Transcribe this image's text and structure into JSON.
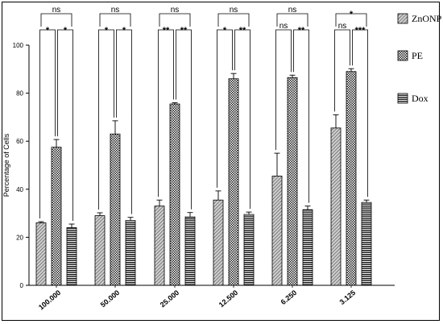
{
  "chart_data": {
    "type": "bar",
    "ylabel": "Percentage of Cells",
    "xlabel": "",
    "ylim": [
      0,
      100
    ],
    "yticks": [
      0,
      20,
      40,
      60,
      80,
      100
    ],
    "categories": [
      "100.000",
      "50.000",
      "25.000",
      "12.500",
      "6.250",
      "3.125"
    ],
    "series": [
      {
        "name": "ZnONP",
        "pattern": "diag",
        "values": [
          26,
          29,
          33,
          35.5,
          45.5,
          65.5
        ],
        "errors": [
          0.5,
          1.2,
          2.5,
          3.8,
          9.5,
          5.5
        ]
      },
      {
        "name": "PE",
        "pattern": "check",
        "values": [
          57.5,
          63,
          75.5,
          86,
          86.5,
          89
        ],
        "errors": [
          3.2,
          5.5,
          0.5,
          2.2,
          1,
          1.2
        ]
      },
      {
        "name": "Dox",
        "pattern": "hstripe",
        "values": [
          24,
          27,
          28.5,
          29.5,
          31.5,
          34.5
        ],
        "errors": [
          1.5,
          1.3,
          1.8,
          1.0,
          1.5,
          1.0
        ]
      }
    ],
    "significance": [
      {
        "pair_a_b": "*",
        "pair_b_c": "*",
        "pair_a_c": "ns"
      },
      {
        "pair_a_b": "*",
        "pair_b_c": "*",
        "pair_a_c": "ns"
      },
      {
        "pair_a_b": "**",
        "pair_b_c": "**",
        "pair_a_c": "ns"
      },
      {
        "pair_a_b": "*",
        "pair_b_c": "**",
        "pair_a_c": "ns"
      },
      {
        "pair_a_b": "ns",
        "pair_b_c": "**",
        "pair_a_c": "ns"
      },
      {
        "pair_a_b": "ns",
        "pair_b_c": "***",
        "pair_a_c": "*"
      }
    ],
    "legend": {
      "placement": "right",
      "entries": [
        "ZnONP",
        "PE",
        "Dox"
      ]
    },
    "grid": false
  }
}
